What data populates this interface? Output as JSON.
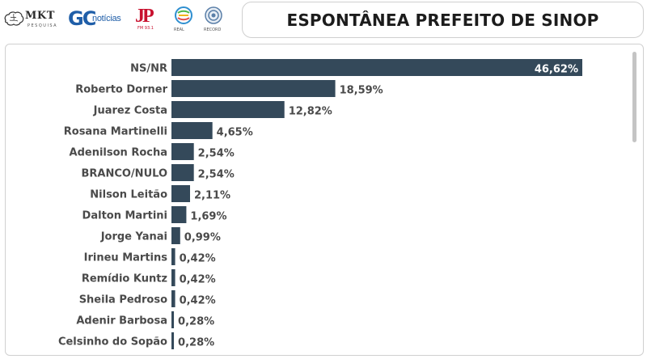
{
  "header": {
    "title": "ESPONTÂNEA PREFEITO DE SINOP",
    "logos": [
      {
        "name": "mkt-pesquisa-logo",
        "text": "MKT",
        "sub": "PESQUISA"
      },
      {
        "name": "gc-noticias-logo",
        "text": "GC",
        "sub": "notícias"
      },
      {
        "name": "jovem-pan-logo",
        "text": "JP",
        "sub": "FM 93.1"
      },
      {
        "name": "real-logo",
        "sub": "REAL"
      },
      {
        "name": "record-logo",
        "sub": "RECORD"
      }
    ]
  },
  "colors": {
    "bar": "#34495a",
    "label": "#4a4a4a"
  },
  "chart_data": {
    "type": "bar",
    "orientation": "horizontal",
    "title": "",
    "xlabel": "",
    "ylabel": "",
    "xlim": [
      0,
      46.62
    ],
    "grid": false,
    "legend": "none",
    "categories": [
      "NS/NR",
      "Roberto Dorner",
      "Juarez Costa",
      "Rosana Martinelli",
      "Adenilson Rocha",
      "BRANCO/NULO",
      "Nilson Leitão",
      "Dalton Martini",
      "Jorge Yanai",
      "Irineu Martins",
      "Remídio Kuntz",
      "Sheila Pedroso",
      "Adenir Barbosa",
      "Celsinho do Sopão"
    ],
    "values": [
      46.62,
      18.59,
      12.82,
      4.65,
      2.54,
      2.54,
      2.11,
      1.69,
      0.99,
      0.42,
      0.42,
      0.42,
      0.28,
      0.28
    ],
    "value_labels": [
      "46,62%",
      "18,59%",
      "12,82%",
      "4,65%",
      "2,54%",
      "2,54%",
      "2,11%",
      "1,69%",
      "0,99%",
      "0,42%",
      "0,42%",
      "0,42%",
      "0,28%",
      "0,28%"
    ]
  }
}
